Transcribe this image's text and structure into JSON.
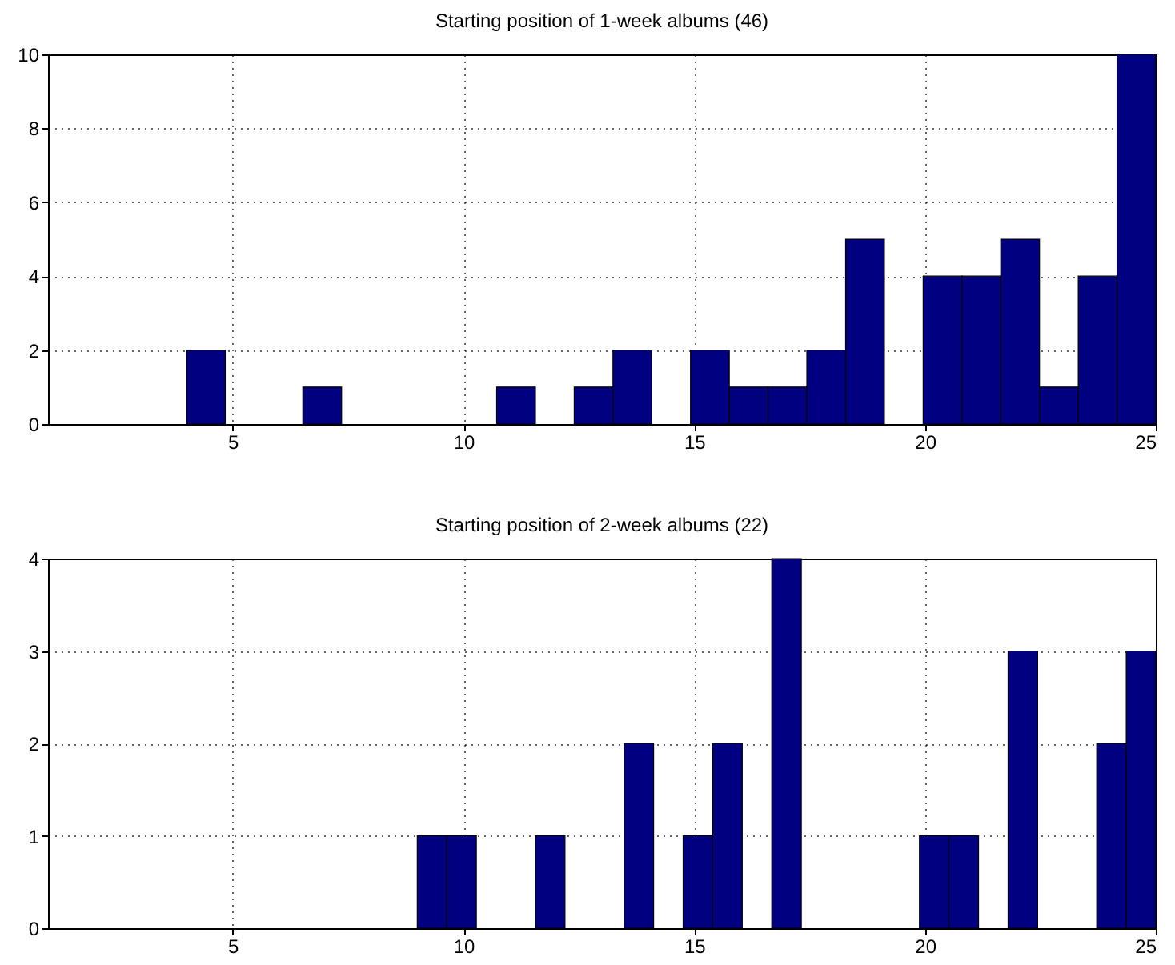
{
  "chart_data": [
    {
      "type": "histogram",
      "title": "Starting position of 1-week albums (46)",
      "color": "#000080",
      "grid": true,
      "bins": [
        4,
        4.84,
        5.68,
        6.52,
        7.36,
        8.2,
        9.04,
        9.88,
        10.72,
        11.56,
        12.4,
        13.24,
        14.08,
        14.92,
        15.76,
        16.6,
        17.44,
        18.28,
        19.12,
        19.96,
        20.8,
        21.64,
        22.48,
        23.32,
        24.16,
        25
      ],
      "values": [
        2,
        0,
        0,
        1,
        0,
        0,
        0,
        0,
        1,
        0,
        1,
        2,
        0,
        2,
        1,
        1,
        2,
        5,
        0,
        4,
        4,
        5,
        1,
        4,
        10
      ],
      "xlim": [
        1,
        25
      ],
      "xticks": [
        5,
        10,
        15,
        20,
        25
      ],
      "ylim": [
        0,
        10
      ],
      "yticks": [
        0,
        2,
        4,
        6,
        8,
        10
      ]
    },
    {
      "type": "histogram",
      "title": "Starting position of 2-week albums (22)",
      "color": "#000080",
      "grid": true,
      "bins": [
        9,
        9.64,
        10.28,
        10.92,
        11.56,
        12.2,
        12.84,
        13.48,
        14.12,
        14.76,
        15.4,
        16.04,
        16.68,
        17.32,
        17.96,
        18.6,
        19.24,
        19.88,
        20.52,
        21.16,
        21.8,
        22.44,
        23.08,
        23.72,
        24.36,
        25
      ],
      "values": [
        1,
        1,
        0,
        0,
        1,
        0,
        0,
        2,
        0,
        1,
        2,
        0,
        4,
        0,
        0,
        0,
        0,
        1,
        1,
        0,
        3,
        0,
        0,
        2,
        3
      ],
      "xlim": [
        1,
        25
      ],
      "xticks": [
        5,
        10,
        15,
        20,
        25
      ],
      "ylim": [
        0,
        4
      ],
      "yticks": [
        0,
        1,
        2,
        3,
        4
      ]
    }
  ]
}
